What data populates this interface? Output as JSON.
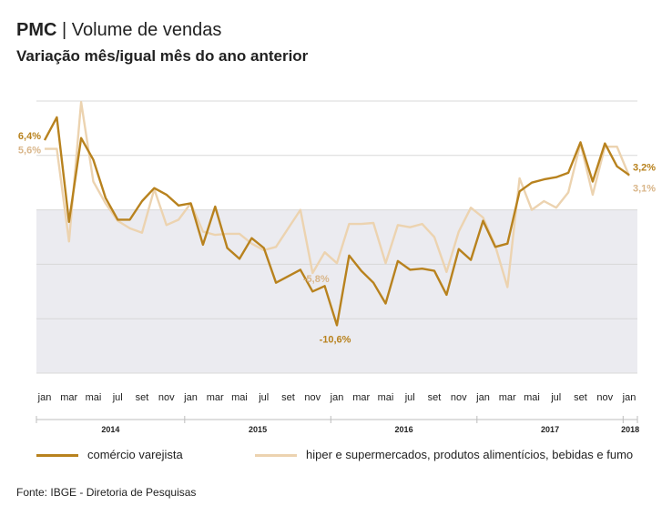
{
  "header": {
    "title_bold": "PMC",
    "title_sep": "|",
    "title_rest": "Volume de vendas",
    "subtitle": "Variação mês/igual mês do ano anterior"
  },
  "colors": {
    "series_main": "#b8821e",
    "series_light": "#ecd3b0",
    "band": "#ebebf0",
    "grid": "#d8d8d8",
    "axis": "#bdbdbd"
  },
  "chart_data": {
    "type": "line",
    "x": [
      "jan",
      "fev",
      "mar",
      "abr",
      "mai",
      "jun",
      "jul",
      "ago",
      "set",
      "out",
      "nov",
      "dez",
      "jan",
      "fev",
      "mar",
      "abr",
      "mai",
      "jun",
      "jul",
      "ago",
      "set",
      "out",
      "nov",
      "dez",
      "jan",
      "fev",
      "mar",
      "abr",
      "mai",
      "jun",
      "jul",
      "ago",
      "set",
      "out",
      "nov",
      "dez",
      "jan",
      "fev",
      "mar",
      "abr",
      "mai",
      "jun",
      "jul",
      "ago",
      "set",
      "out",
      "nov",
      "dez",
      "jan"
    ],
    "tick_labels": [
      "jan",
      "mar",
      "mai",
      "jul",
      "set",
      "nov",
      "jan",
      "mar",
      "mai",
      "jul",
      "set",
      "nov",
      "jan",
      "mar",
      "mai",
      "jul",
      "set",
      "nov",
      "jan",
      "mar",
      "mai",
      "jul",
      "set",
      "nov",
      "jan"
    ],
    "years": [
      "2014",
      "2015",
      "2016",
      "2017",
      "2018"
    ],
    "ylim": [
      -15,
      10
    ],
    "band_range": [
      -15,
      0
    ],
    "grid_values": [
      -15,
      -10,
      -5,
      0,
      5,
      10
    ],
    "series": [
      {
        "name": "comércio varejista",
        "values": [
          6.4,
          8.5,
          -1.1,
          6.6,
          4.6,
          1.1,
          -0.9,
          -0.9,
          0.8,
          2.0,
          1.4,
          0.4,
          0.6,
          -3.2,
          0.3,
          -3.5,
          -4.5,
          -2.6,
          -3.5,
          -6.7,
          -6.1,
          -5.5,
          -7.5,
          -7.0,
          -10.6,
          -4.2,
          -5.6,
          -6.7,
          -8.6,
          -4.7,
          -5.5,
          -5.4,
          -5.6,
          -7.8,
          -3.6,
          -4.6,
          -1.0,
          -3.4,
          -3.1,
          1.7,
          2.5,
          2.8,
          3.0,
          3.4,
          6.2,
          2.6,
          6.1,
          4.0,
          3.2
        ],
        "end_label": "3,2%"
      },
      {
        "name": "hiper e supermercados, produtos alimentícios, bebidas e fumo",
        "values": [
          5.6,
          5.6,
          -2.9,
          9.9,
          2.6,
          0.6,
          -1.0,
          -1.7,
          -2.1,
          1.9,
          -1.4,
          -0.9,
          0.6,
          -2.0,
          -2.3,
          -2.2,
          -2.2,
          -3.1,
          -3.7,
          -3.4,
          -1.7,
          0.0,
          -5.8,
          -3.9,
          -4.9,
          -1.3,
          -1.3,
          -1.2,
          -4.9,
          -1.4,
          -1.6,
          -1.3,
          -2.5,
          -5.7,
          -2.0,
          0.2,
          -0.7,
          -3.3,
          -7.1,
          2.9,
          0.0,
          0.8,
          0.2,
          1.6,
          6.1,
          1.4,
          5.8,
          5.8,
          3.1
        ],
        "end_label": "3,1%"
      }
    ],
    "annotations": [
      {
        "text": "6,4%",
        "series": 0,
        "index": 0
      },
      {
        "text": "5,6%",
        "series": 1,
        "index": 0
      },
      {
        "text": "-5,8%",
        "series": 1,
        "index": 22
      },
      {
        "text": "-10,6%",
        "series": 0,
        "index": 24
      }
    ],
    "legend": "bottom"
  },
  "legend": {
    "items": [
      "comércio varejista",
      "hiper e supermercados, produtos alimentícios, bebidas e fumo"
    ]
  },
  "footer": {
    "source": "Fonte: IBGE - Diretoria de Pesquisas"
  }
}
